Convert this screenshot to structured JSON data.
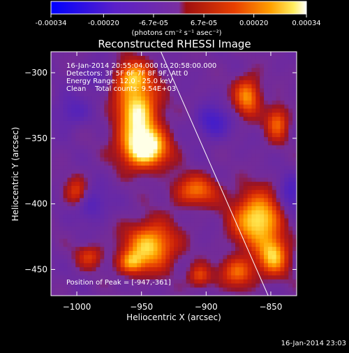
{
  "colorbar": {
    "tick_labels": [
      "-0.00034",
      "-0.00020",
      "-6.7e-05",
      "6.7e-05",
      "0.00020",
      "0.00034"
    ],
    "tick_values": [
      -0.00034,
      -0.0002,
      -6.7e-05,
      6.7e-05,
      0.0002,
      0.00034
    ],
    "range": [
      -0.00034,
      0.00034
    ],
    "units_label": "(photons cm⁻² s⁻¹ asec⁻²)",
    "colors": [
      "#0000ff",
      "#5a1fd0",
      "#6b2fa8",
      "#7a2fa0",
      "#b51620",
      "#e63a00",
      "#ff8a00",
      "#ffc830",
      "#ffff90",
      "#ffffff"
    ]
  },
  "chart_data": {
    "type": "heatmap",
    "title": "Reconstructed RHESSI Image",
    "xlabel": "Heliocentric X (arcsec)",
    "ylabel": "Heliocentric Y (arcsec)",
    "xlim": [
      -1020,
      -830
    ],
    "ylim": [
      -470,
      -284
    ],
    "x_ticks": [
      -1000,
      -950,
      -900,
      -850
    ],
    "y_ticks": [
      -300,
      -350,
      -400,
      -450
    ],
    "x_tick_labels": [
      "−1000",
      "−950",
      "−900",
      "−850"
    ],
    "y_tick_labels": [
      "−300",
      "−350",
      "−400",
      "−450"
    ],
    "annotations": [
      "16-Jan-2014 20:55:04.000 to 20:58:00.000",
      "Detectors: 3F 5F 6F 7F 8F 9F, Att 0",
      "Energy Range: 12.0 - 25.0 keV",
      "Clean    Total counts: 9.54E+03"
    ],
    "peak_label": "Position of Peak = [-947,-361]",
    "peak": [
      -947,
      -361
    ],
    "limb_line": {
      "x": [
        -935,
        -852
      ],
      "y": [
        -284,
        -470
      ]
    },
    "sources": [
      {
        "x": -953,
        "y": -330,
        "sx": 11,
        "sy": 18,
        "a": 1.0
      },
      {
        "x": -947,
        "y": -358,
        "sx": 12,
        "sy": 10,
        "a": 1.1
      },
      {
        "x": -958,
        "y": -303,
        "sx": 9,
        "sy": 8,
        "a": 0.6
      },
      {
        "x": -943,
        "y": -432,
        "sx": 13,
        "sy": 12,
        "a": 0.9
      },
      {
        "x": -958,
        "y": -445,
        "sx": 7,
        "sy": 6,
        "a": 0.6
      },
      {
        "x": -860,
        "y": -412,
        "sx": 13,
        "sy": 14,
        "a": 1.0
      },
      {
        "x": -848,
        "y": -440,
        "sx": 8,
        "sy": 10,
        "a": 0.8
      },
      {
        "x": -875,
        "y": -452,
        "sx": 9,
        "sy": 8,
        "a": 0.6
      },
      {
        "x": -868,
        "y": -318,
        "sx": 7,
        "sy": 10,
        "a": 0.7
      },
      {
        "x": -845,
        "y": -338,
        "sx": 6,
        "sy": 9,
        "a": 0.6
      },
      {
        "x": -908,
        "y": -390,
        "sx": 12,
        "sy": 8,
        "a": 0.6
      },
      {
        "x": -1000,
        "y": -392,
        "sx": 6,
        "sy": 8,
        "a": 0.5
      },
      {
        "x": -990,
        "y": -440,
        "sx": 7,
        "sy": 6,
        "a": 0.4
      },
      {
        "x": -905,
        "y": -455,
        "sx": 6,
        "sy": 6,
        "a": 0.5
      }
    ],
    "sinks": [
      {
        "x": -895,
        "y": -338,
        "sx": 9,
        "sy": 9,
        "a": 0.9
      },
      {
        "x": -990,
        "y": -400,
        "sx": 10,
        "sy": 9,
        "a": 0.7
      },
      {
        "x": -835,
        "y": -395,
        "sx": 7,
        "sy": 12,
        "a": 0.8
      },
      {
        "x": -1005,
        "y": -330,
        "sx": 10,
        "sy": 9,
        "a": 0.6
      },
      {
        "x": -985,
        "y": -303,
        "sx": 9,
        "sy": 7,
        "a": 0.5
      }
    ]
  },
  "footer": {
    "timestamp": "16-Jan-2014 23:03"
  }
}
